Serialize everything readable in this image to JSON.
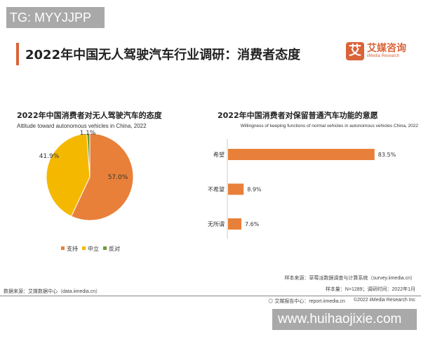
{
  "watermarks": {
    "top": "TG: MYYJJPP",
    "bottom": "www.huihaojixie.com"
  },
  "header": {
    "title": "2022年中国无人驾驶汽车行业调研：消费者态度",
    "logo_mark": "艾",
    "logo_cn": "艾媒咨询",
    "logo_en": "iiMedia Research"
  },
  "colors": {
    "accent": "#d9643a",
    "support": "#E8803A",
    "neutral": "#F5B800",
    "oppose": "#6E9A3C",
    "bar": "#E8803A"
  },
  "chart_data": [
    {
      "type": "pie",
      "title": "2022年中国消费者对无人驾驶汽车的态度",
      "subtitle": "Attitude toward autonomous vehicles in China, 2022",
      "categories": [
        "支持",
        "中立",
        "反对"
      ],
      "values": [
        57.0,
        41.9,
        1.1
      ],
      "labels": [
        "57.0%",
        "41.9%",
        "1.1%"
      ],
      "legend_position": "bottom"
    },
    {
      "type": "bar",
      "orientation": "horizontal",
      "title": "2022年中国消费者对保留普通汽车功能的意愿",
      "subtitle": "Willingness of keeping functions of normal vehicles in autonomous vehicles China, 2022",
      "categories": [
        "希望",
        "不希望",
        "无所谓"
      ],
      "values": [
        83.5,
        8.9,
        7.6
      ],
      "labels": [
        "83.5%",
        "8.9%",
        "7.6%"
      ]
    }
  ],
  "footer": {
    "source": "数据来源：艾媒数据中心（data.iimedia.cn）",
    "sample_source": "样本来源：草莓派数据调查与计算系统（survey.iimedia.cn）",
    "sample_size": "样本量：N=1289；调研时间：2022年1月",
    "report": "艾媒报告中心：report.iimedia.cn",
    "copyright": "©2022  iiMedia Research Inc"
  }
}
